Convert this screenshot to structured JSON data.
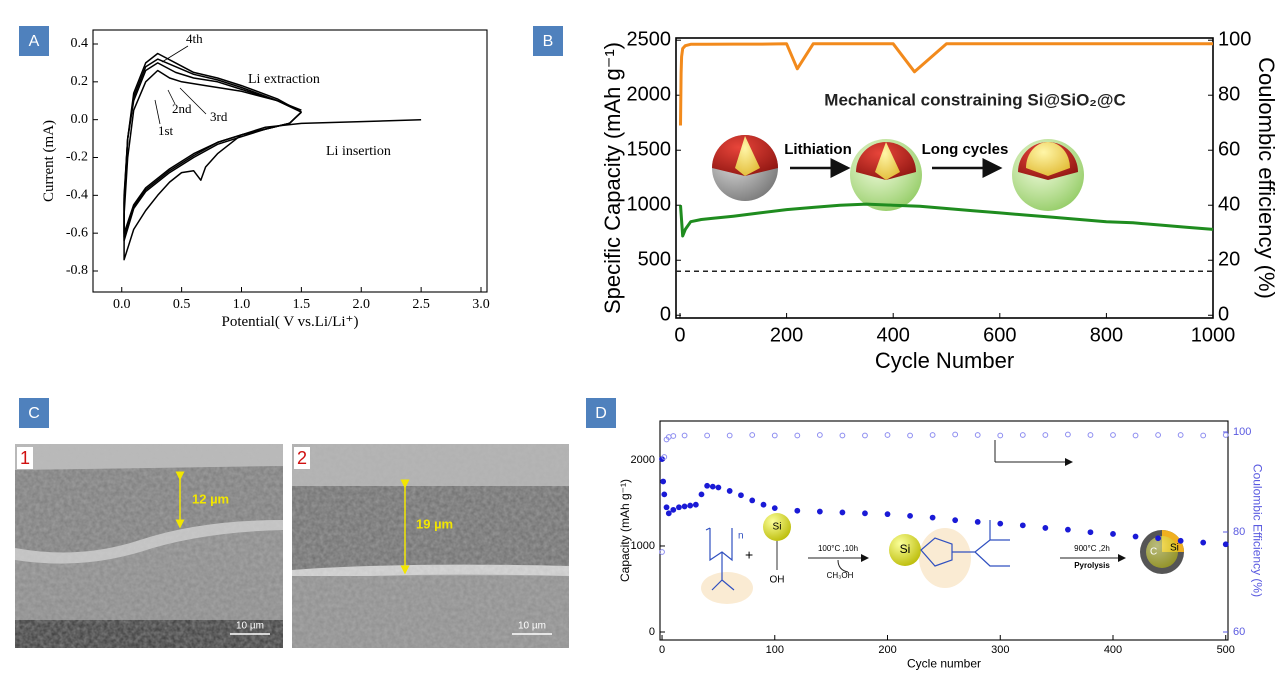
{
  "chart_data": [
    {
      "panel": "A",
      "type": "line",
      "xlabel": "Potential( V vs.Li/Li⁺)",
      "ylabel": "Current (mA)",
      "xlim": [
        -0.24,
        3.05
      ],
      "ylim": [
        -0.911,
        0.474
      ],
      "xticks": [
        {
          "value": 0,
          "label": "0.0"
        },
        0.5,
        {
          "value": 1,
          "label": "1.0"
        },
        1.5,
        {
          "value": 2,
          "label": "2.0"
        },
        2.5,
        {
          "value": 3,
          "label": "3.0"
        }
      ],
      "yticks": [
        0.4,
        0.2,
        {
          "value": 0,
          "label": "0.0"
        },
        -0.2,
        -0.4,
        -0.6,
        -0.8
      ],
      "annotations": [
        "Li extraction",
        "Li insertion"
      ],
      "series": [
        {
          "name": "1st",
          "color": "#000000",
          "x": [
            2.5,
            2.0,
            1.5,
            1.2,
            1.0,
            0.8,
            0.7,
            0.66,
            0.6,
            0.5,
            0.4,
            0.3,
            0.2,
            0.1,
            0.02,
            0.02,
            0.05,
            0.1,
            0.2,
            0.3,
            0.4,
            0.5,
            0.7,
            1.0,
            1.3,
            1.5
          ],
          "values": [
            0.0,
            -0.01,
            -0.02,
            -0.04,
            -0.08,
            -0.18,
            -0.25,
            -0.32,
            -0.27,
            -0.28,
            -0.33,
            -0.4,
            -0.48,
            -0.58,
            -0.74,
            -0.5,
            -0.2,
            0.05,
            0.2,
            0.26,
            0.22,
            0.2,
            0.18,
            0.15,
            0.1,
            0.05
          ]
        },
        {
          "name": "2nd",
          "color": "#000000",
          "x": [
            1.5,
            1.4,
            1.2,
            1.0,
            0.8,
            0.6,
            0.4,
            0.2,
            0.1,
            0.02,
            0.02,
            0.05,
            0.1,
            0.2,
            0.3,
            0.45,
            0.6,
            0.8,
            1.0,
            1.3,
            1.5
          ],
          "values": [
            0.04,
            -0.02,
            -0.05,
            -0.08,
            -0.12,
            -0.18,
            -0.26,
            -0.36,
            -0.45,
            -0.6,
            -0.4,
            -0.1,
            0.1,
            0.26,
            0.3,
            0.25,
            0.22,
            0.2,
            0.16,
            0.1,
            0.04
          ]
        },
        {
          "name": "3rd",
          "color": "#000000",
          "x": [
            1.5,
            1.4,
            1.2,
            1.0,
            0.8,
            0.6,
            0.4,
            0.2,
            0.1,
            0.02,
            0.02,
            0.05,
            0.1,
            0.2,
            0.3,
            0.45,
            0.6,
            0.8,
            1.0,
            1.3,
            1.5
          ],
          "values": [
            0.04,
            -0.02,
            -0.05,
            -0.08,
            -0.12,
            -0.19,
            -0.27,
            -0.37,
            -0.46,
            -0.62,
            -0.42,
            -0.1,
            0.12,
            0.28,
            0.32,
            0.28,
            0.24,
            0.21,
            0.17,
            0.1,
            0.04
          ]
        },
        {
          "name": "4th",
          "color": "#000000",
          "x": [
            1.5,
            1.4,
            1.2,
            1.0,
            0.8,
            0.6,
            0.4,
            0.2,
            0.1,
            0.02,
            0.02,
            0.05,
            0.1,
            0.2,
            0.3,
            0.45,
            0.6,
            0.8,
            1.0,
            1.3,
            1.5
          ],
          "values": [
            0.04,
            -0.02,
            -0.05,
            -0.09,
            -0.13,
            -0.2,
            -0.28,
            -0.38,
            -0.47,
            -0.64,
            -0.44,
            -0.1,
            0.14,
            0.3,
            0.35,
            0.3,
            0.25,
            0.22,
            0.18,
            0.11,
            0.04
          ]
        }
      ]
    },
    {
      "panel": "B",
      "type": "line",
      "xlabel": "Cycle Number",
      "ylabel": "Specific Capacity (mAh g⁻¹)",
      "y2label": "Coulombic efficiency (%)",
      "xlim": [
        -7.5,
        1000
      ],
      "ylim": [
        -25,
        2520
      ],
      "y2lim": [
        -1,
        100.8
      ],
      "xticks": [
        0,
        200,
        400,
        600,
        800,
        1000
      ],
      "yticks": [
        0,
        500,
        1000,
        1500,
        2000,
        2500
      ],
      "y2ticks": [
        0,
        20,
        40,
        60,
        80,
        100
      ],
      "hline": {
        "value": 400,
        "dashed": true
      },
      "annotations": [
        "Mechanical constraining Si@SiO₂@C",
        "Lithiation",
        "Long cycles"
      ],
      "series": [
        {
          "color": "#1f8c1f",
          "x": [
            1,
            5,
            10,
            20,
            40,
            60,
            100,
            150,
            200,
            250,
            300,
            350,
            400,
            450,
            500,
            550,
            600,
            650,
            700,
            750,
            800,
            850,
            900,
            950,
            1000
          ],
          "values": [
            1000,
            720,
            780,
            850,
            870,
            880,
            900,
            930,
            960,
            980,
            1000,
            1010,
            1000,
            990,
            970,
            950,
            930,
            910,
            890,
            870,
            850,
            840,
            820,
            800,
            780
          ]
        },
        {
          "color": "#f28a1c",
          "axis": "y2",
          "x": [
            1,
            2,
            3,
            5,
            10,
            20,
            50,
            100,
            150,
            200,
            220,
            250,
            300,
            400,
            440,
            500,
            600,
            700,
            800,
            900,
            1000
          ],
          "values": [
            69,
            88,
            94,
            97,
            98,
            98.5,
            98.5,
            98.6,
            98.6,
            98.7,
            89.6,
            98.7,
            98.7,
            98.7,
            88.5,
            98.7,
            98.7,
            98.7,
            98.7,
            98.7,
            98.7
          ]
        }
      ]
    },
    {
      "panel": "D",
      "type": "line",
      "xlabel": "Cycle number",
      "ylabel": "Capacity (mAh g⁻¹)",
      "y2label": "Coulombic Efficiency (%)",
      "y2color": "#5a5ae0",
      "xlim": [
        -1.8,
        502
      ],
      "ylim": [
        -93,
        2453
      ],
      "y2lim": [
        58.4,
        102.2
      ],
      "xticks": [
        0,
        100,
        200,
        300,
        400,
        500
      ],
      "yticks": [
        0,
        1000,
        2000
      ],
      "y2ticks": [
        60,
        80,
        100
      ],
      "annotations": [
        "n",
        "+",
        "Si",
        "OH",
        "100°C ,10h",
        "CH₃OH",
        "Si",
        "900°C ,2h",
        "Pyrolysis",
        "C",
        "Si"
      ],
      "series": [
        {
          "color": "#1a1ad6",
          "marker": "filled",
          "x": [
            0,
            1,
            2,
            4,
            6,
            10,
            15,
            20,
            25,
            30,
            35,
            40,
            45,
            50,
            60,
            70,
            80,
            90,
            100,
            120,
            140,
            160,
            180,
            200,
            220,
            240,
            260,
            280,
            300,
            320,
            340,
            360,
            380,
            400,
            420,
            440,
            460,
            480,
            500
          ],
          "values": [
            2010,
            1750,
            1600,
            1450,
            1380,
            1420,
            1450,
            1460,
            1470,
            1480,
            1600,
            1700,
            1690,
            1680,
            1640,
            1590,
            1530,
            1480,
            1440,
            1410,
            1400,
            1390,
            1380,
            1370,
            1350,
            1330,
            1300,
            1280,
            1260,
            1240,
            1210,
            1190,
            1160,
            1140,
            1110,
            1090,
            1060,
            1040,
            1020
          ]
        },
        {
          "color": "#8c8cf0",
          "marker": "open",
          "axis": "y2",
          "x": [
            0,
            2,
            4,
            6,
            10,
            20,
            40,
            60,
            80,
            100,
            120,
            140,
            160,
            180,
            200,
            220,
            240,
            260,
            280,
            300,
            320,
            340,
            360,
            380,
            400,
            420,
            440,
            460,
            480,
            500
          ],
          "values": [
            76,
            95,
            98.5,
            99,
            99.2,
            99.3,
            99.3,
            99.3,
            99.4,
            99.3,
            99.3,
            99.4,
            99.3,
            99.3,
            99.4,
            99.3,
            99.4,
            99.5,
            99.4,
            99.3,
            99.4,
            99.4,
            99.5,
            99.4,
            99.4,
            99.3,
            99.4,
            99.4,
            99.3,
            99.4
          ]
        }
      ]
    }
  ],
  "sem_panel": {
    "panel": "C",
    "images": [
      {
        "label": "1",
        "thickness": "12 µm",
        "scale_bar": "10 µm"
      },
      {
        "label": "2",
        "thickness": "19 µm",
        "scale_bar": "10 µm"
      }
    ]
  }
}
